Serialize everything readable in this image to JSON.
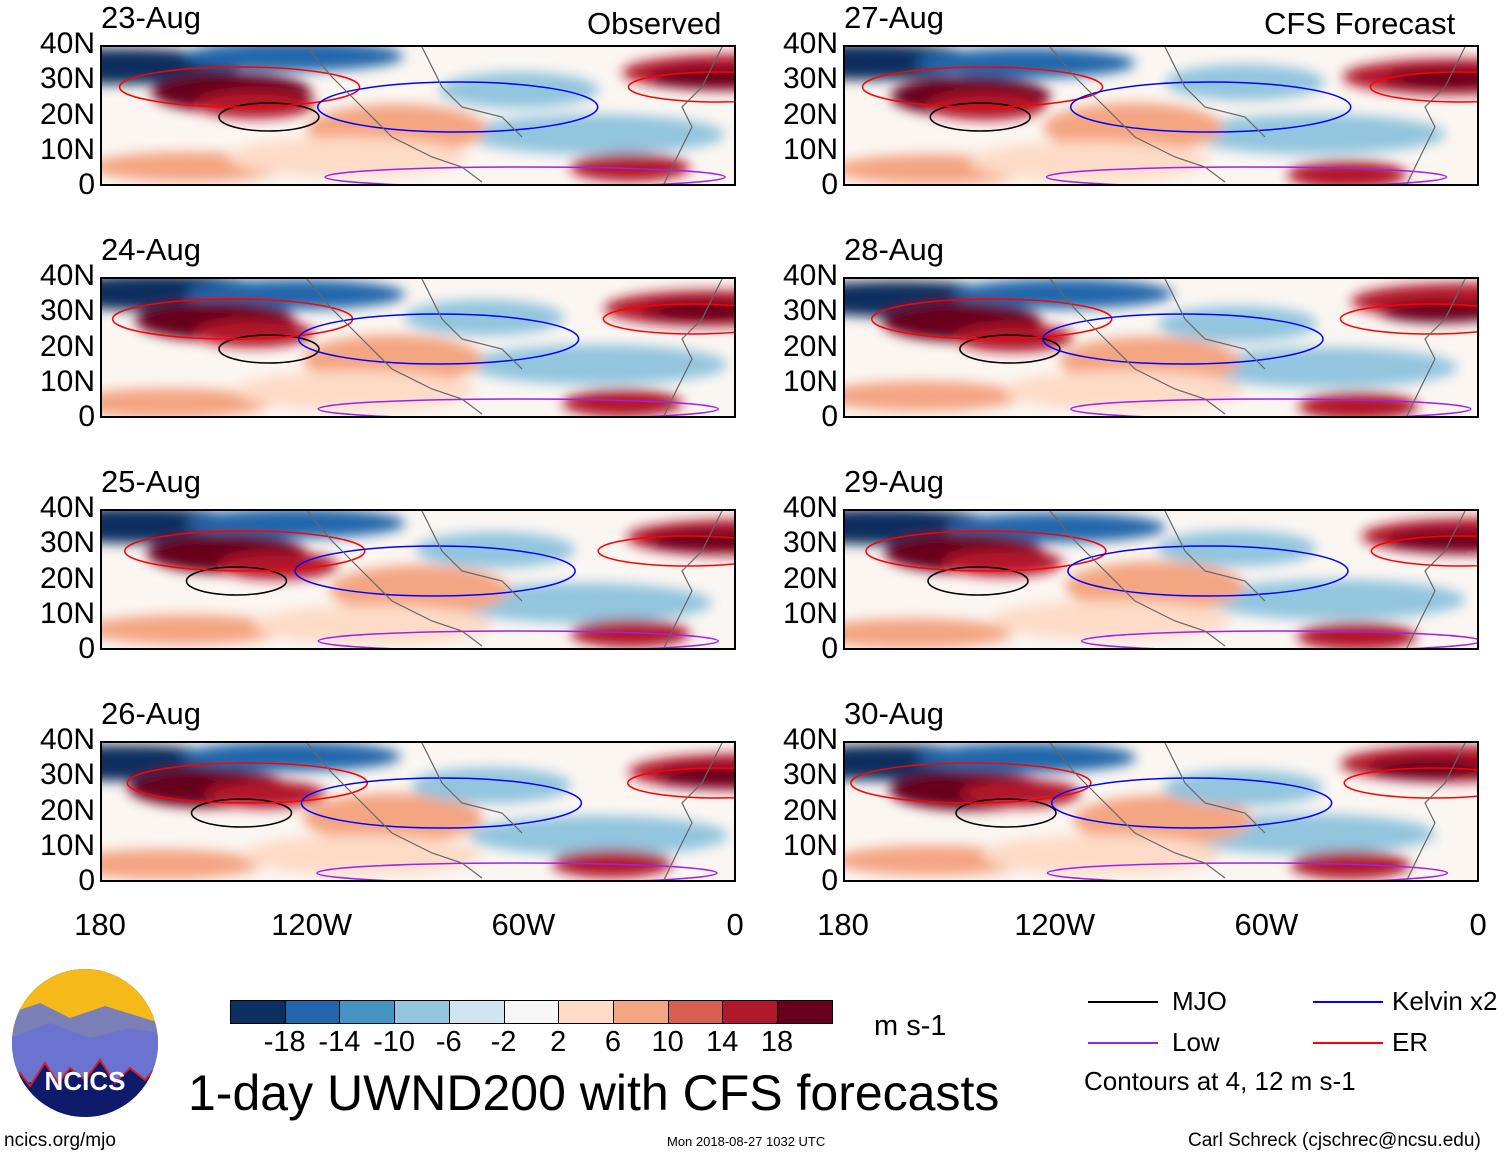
{
  "panels": {
    "left_label": "Observed",
    "right_label": "CFS Forecast",
    "left_dates": [
      "23-Aug",
      "24-Aug",
      "25-Aug",
      "26-Aug"
    ],
    "right_dates": [
      "27-Aug",
      "28-Aug",
      "29-Aug",
      "30-Aug"
    ],
    "lat_ticks": [
      "40N",
      "30N",
      "20N",
      "10N",
      "0"
    ],
    "lon_ticks": [
      "180",
      "120W",
      "60W",
      "0"
    ]
  },
  "colorbar": {
    "colors": [
      "#0b2f5e",
      "#2166ac",
      "#4393c3",
      "#92c5de",
      "#d1e5f0",
      "#f7f7f7",
      "#fddbc7",
      "#f4a582",
      "#d6604d",
      "#b2182b",
      "#67001f"
    ],
    "labels": [
      "-18",
      "-14",
      "-10",
      "-6",
      "-2",
      "2",
      "6",
      "10",
      "14",
      "18"
    ],
    "units": "m s-1"
  },
  "legend": {
    "items": [
      {
        "label": "MJO",
        "color": "#000000"
      },
      {
        "label": "Kelvin x2",
        "color": "#0000ff"
      },
      {
        "label": "Low",
        "color": "#a020f0"
      },
      {
        "label": "ER",
        "color": "#ff0000"
      }
    ],
    "contours": "Contours at 4, 12 m s-1"
  },
  "title": "1-day UWND200 with CFS forecasts",
  "logo_text": "NCICS",
  "footer": {
    "url": "ncics.org/mjo",
    "timestamp": "Mon 2018-08-27 1032 UTC",
    "author": "Carl Schreck (cjschrec@ncsu.edu)"
  }
}
